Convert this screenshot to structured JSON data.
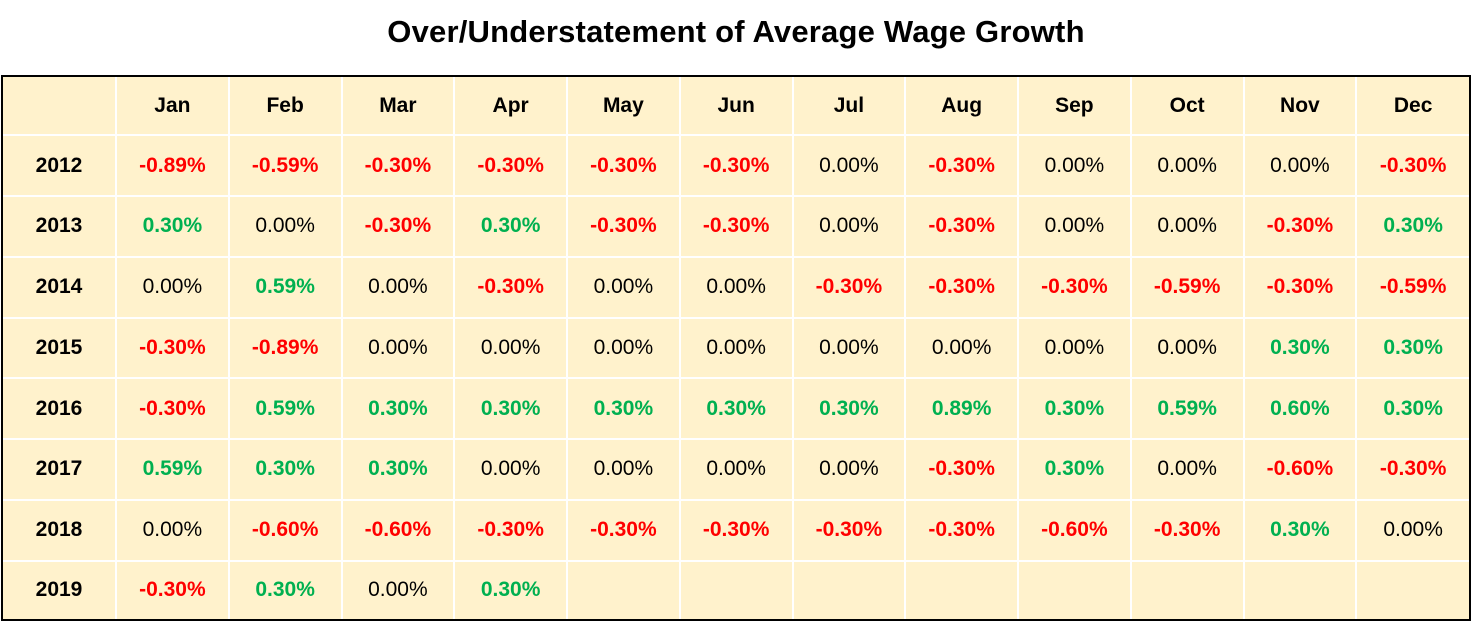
{
  "chart_data": {
    "type": "table",
    "title": "Over/Understatement of Average Wage Growth",
    "columns": [
      "Jan",
      "Feb",
      "Mar",
      "Apr",
      "May",
      "Jun",
      "Jul",
      "Aug",
      "Sep",
      "Oct",
      "Nov",
      "Dec"
    ],
    "rows": [
      {
        "year": "2012",
        "values": [
          "-0.89%",
          "-0.59%",
          "-0.30%",
          "-0.30%",
          "-0.30%",
          "-0.30%",
          "0.00%",
          "-0.30%",
          "0.00%",
          "0.00%",
          "0.00%",
          "-0.30%"
        ]
      },
      {
        "year": "2013",
        "values": [
          "0.30%",
          "0.00%",
          "-0.30%",
          "0.30%",
          "-0.30%",
          "-0.30%",
          "0.00%",
          "-0.30%",
          "0.00%",
          "0.00%",
          "-0.30%",
          "0.30%"
        ]
      },
      {
        "year": "2014",
        "values": [
          "0.00%",
          "0.59%",
          "0.00%",
          "-0.30%",
          "0.00%",
          "0.00%",
          "-0.30%",
          "-0.30%",
          "-0.30%",
          "-0.59%",
          "-0.30%",
          "-0.59%"
        ]
      },
      {
        "year": "2015",
        "values": [
          "-0.30%",
          "-0.89%",
          "0.00%",
          "0.00%",
          "0.00%",
          "0.00%",
          "0.00%",
          "0.00%",
          "0.00%",
          "0.00%",
          "0.30%",
          "0.30%"
        ]
      },
      {
        "year": "2016",
        "values": [
          "-0.30%",
          "0.59%",
          "0.30%",
          "0.30%",
          "0.30%",
          "0.30%",
          "0.30%",
          "0.89%",
          "0.30%",
          "0.59%",
          "0.60%",
          "0.30%"
        ]
      },
      {
        "year": "2017",
        "values": [
          "0.59%",
          "0.30%",
          "0.30%",
          "0.00%",
          "0.00%",
          "0.00%",
          "0.00%",
          "-0.30%",
          "0.30%",
          "0.00%",
          "-0.60%",
          "-0.30%"
        ]
      },
      {
        "year": "2018",
        "values": [
          "0.00%",
          "-0.60%",
          "-0.60%",
          "-0.30%",
          "-0.30%",
          "-0.30%",
          "-0.30%",
          "-0.30%",
          "-0.60%",
          "-0.30%",
          "0.30%",
          "0.00%"
        ]
      },
      {
        "year": "2019",
        "values": [
          "-0.30%",
          "0.30%",
          "0.00%",
          "0.30%",
          "",
          "",
          "",
          "",
          "",
          "",
          "",
          ""
        ]
      }
    ]
  },
  "colors": {
    "cell_background": "#fff2cc",
    "positive": "#00b050",
    "negative": "#ff0000",
    "zero": "#000000"
  }
}
